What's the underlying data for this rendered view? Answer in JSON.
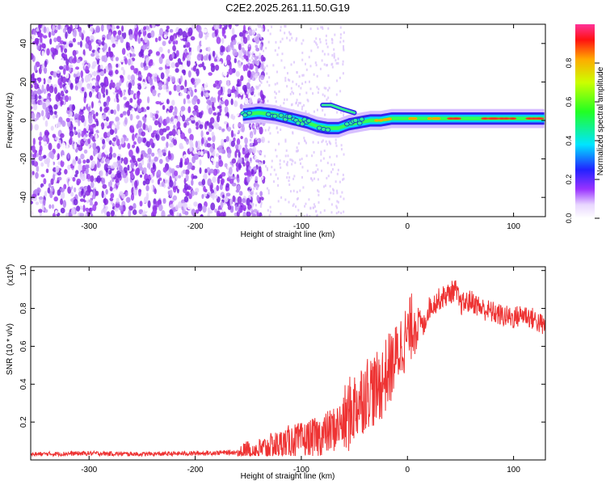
{
  "title": "C2E2.2025.261.11.50.G19",
  "chart_data": [
    {
      "type": "heatmap",
      "title": "C2E2.2025.261.11.50.G19",
      "xlabel": "Height of straight line (km)",
      "ylabel": "Frequency (Hz)",
      "xlim": [
        -355,
        130
      ],
      "ylim": [
        -50,
        50
      ],
      "xticks": [
        -300,
        -200,
        -100,
        0,
        100
      ],
      "xtick_labels": [
        "-300",
        "-200",
        "-100",
        "0",
        "100"
      ],
      "yticks": [
        -40,
        -20,
        0,
        20,
        40
      ],
      "ytick_labels": [
        "-40",
        "-20",
        "0",
        "20",
        "40"
      ],
      "noise_region_x": [
        -355,
        -150
      ],
      "signal_track": {
        "x": [
          -155,
          -140,
          -125,
          -110,
          -95,
          -85,
          -75,
          -65,
          -55,
          -45,
          -35,
          -25,
          -15,
          0,
          20,
          50,
          80,
          100,
          130
        ],
        "freq": [
          3,
          4,
          3,
          1,
          -1,
          -3,
          -4,
          -4,
          -2,
          -1,
          0,
          0,
          1,
          1,
          1,
          1,
          1,
          1,
          1
        ]
      },
      "colorbar": {
        "label": "Normalized spectral amplitude",
        "range": [
          0,
          1
        ],
        "ticks": [
          0.0,
          0.2,
          0.4,
          0.6,
          0.8
        ],
        "tick_labels": [
          "0.0",
          "0.2",
          "0.4",
          "0.6",
          "0.8"
        ]
      }
    },
    {
      "type": "line",
      "xlabel": "Height of straight line (km)",
      "ylabel": "SNR (10 * v/v)",
      "y_scale_label": "(x10",
      "y_scale_exp": "4",
      "y_scale_close": ")",
      "xlim": [
        -355,
        130
      ],
      "ylim": [
        0,
        1.02
      ],
      "xticks": [
        -300,
        -200,
        -100,
        0,
        100
      ],
      "xtick_labels": [
        "-300",
        "-200",
        "-100",
        "0",
        "100"
      ],
      "yticks": [
        0.2,
        0.4,
        0.6,
        0.8,
        1.0
      ],
      "ytick_labels": [
        "0.2",
        "0.4",
        "0.6",
        "0.8",
        "1.0"
      ],
      "series": [
        {
          "name": "SNR",
          "color": "#ee3333",
          "x": [
            -355,
            -300,
            -250,
            -200,
            -160,
            -140,
            -120,
            -110,
            -100,
            -90,
            -80,
            -70,
            -60,
            -50,
            -40,
            -35,
            -30,
            -25,
            -20,
            -15,
            -10,
            -5,
            0,
            5,
            10,
            15,
            20,
            30,
            40,
            45,
            50,
            60,
            70,
            80,
            90,
            100,
            110,
            120,
            130
          ],
          "y": [
            0.03,
            0.035,
            0.03,
            0.035,
            0.04,
            0.05,
            0.08,
            0.1,
            0.1,
            0.11,
            0.13,
            0.16,
            0.2,
            0.28,
            0.35,
            0.38,
            0.36,
            0.4,
            0.45,
            0.5,
            0.55,
            0.62,
            0.65,
            0.72,
            0.75,
            0.7,
            0.8,
            0.85,
            0.88,
            0.9,
            0.82,
            0.84,
            0.8,
            0.78,
            0.76,
            0.75,
            0.77,
            0.74,
            0.7
          ]
        }
      ]
    }
  ]
}
